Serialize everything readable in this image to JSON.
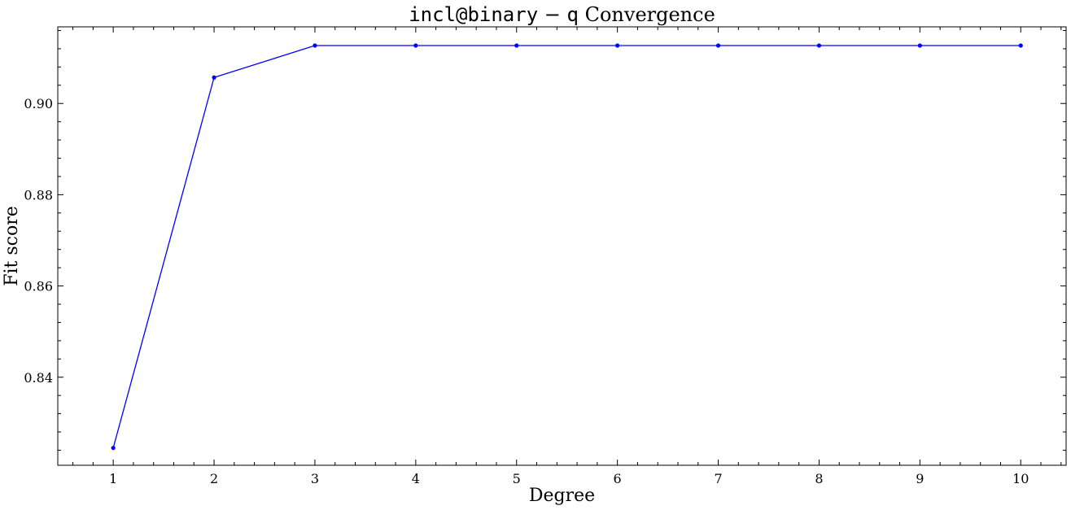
{
  "chart_data": {
    "type": "line",
    "title_parts": [
      {
        "text": "incl@binary",
        "style": "mono"
      },
      {
        "text": " − ",
        "style": "serif"
      },
      {
        "text": "q",
        "style": "mono"
      },
      {
        "text": " Convergence",
        "style": "serif"
      }
    ],
    "xlabel": "Degree",
    "ylabel": "Fit score",
    "x": [
      1,
      2,
      3,
      4,
      5,
      6,
      7,
      8,
      9,
      10
    ],
    "series": [
      {
        "values": [
          0.8245,
          0.9057,
          0.9127,
          0.9127,
          0.9127,
          0.9127,
          0.9127,
          0.9127,
          0.9127,
          0.9127
        ],
        "color": "#0000ff",
        "marker": "circle"
      }
    ],
    "xlim": [
      0.45,
      10.45
    ],
    "ylim": [
      0.8207,
      0.9168
    ],
    "xticks": [
      1,
      2,
      3,
      4,
      5,
      6,
      7,
      8,
      9,
      10
    ],
    "xtick_labels": [
      "1",
      "2",
      "3",
      "4",
      "5",
      "6",
      "7",
      "8",
      "9",
      "10"
    ],
    "yticks": [
      0.84,
      0.86,
      0.88,
      0.9
    ],
    "ytick_labels": [
      "0.84",
      "0.86",
      "0.88",
      "0.90"
    ],
    "grid": false,
    "legend": "none"
  }
}
